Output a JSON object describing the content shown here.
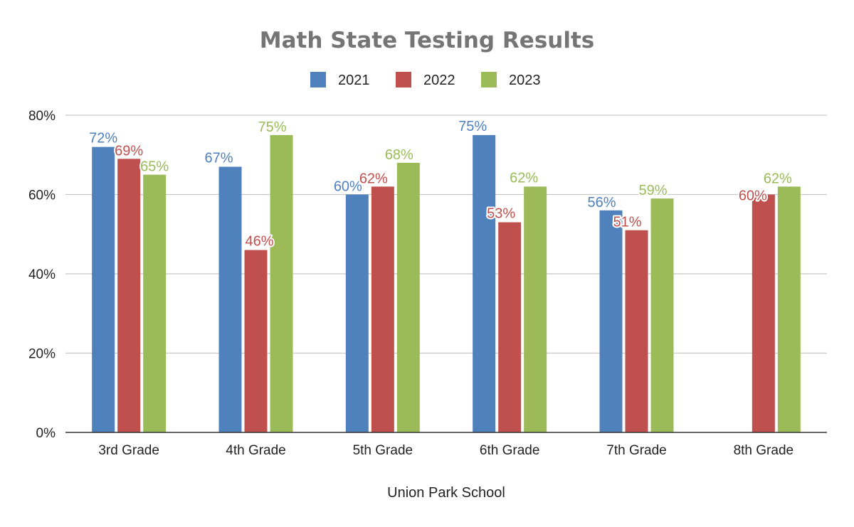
{
  "chart_data": {
    "type": "bar",
    "title": "Math State Testing Results",
    "xlabel": "Union Park School",
    "ylabel": "",
    "ylim": [
      0,
      80
    ],
    "yticks": [
      0,
      20,
      40,
      60,
      80
    ],
    "ytick_labels": [
      "0%",
      "20%",
      "40%",
      "60%",
      "80%"
    ],
    "grid": true,
    "legend_position": "top",
    "categories": [
      "3rd Grade",
      "4th Grade",
      "5th Grade",
      "6th Grade",
      "7th Grade",
      "8th Grade"
    ],
    "series": [
      {
        "name": "2021",
        "color": "#4f81bd",
        "values": [
          72,
          67,
          60,
          75,
          56,
          null
        ],
        "labels": [
          "72%",
          "67%",
          "60%",
          "75%",
          "56%",
          null
        ]
      },
      {
        "name": "2022",
        "color": "#c0504d",
        "values": [
          69,
          46,
          62,
          53,
          51,
          60
        ],
        "labels": [
          "69%",
          "46%",
          "62%",
          "53%",
          "51%",
          "60%"
        ]
      },
      {
        "name": "2023",
        "color": "#9bbb59",
        "values": [
          65,
          75,
          68,
          62,
          59,
          62
        ],
        "labels": [
          "65%",
          "75%",
          "68%",
          "62%",
          "59%",
          "62%"
        ]
      }
    ]
  }
}
